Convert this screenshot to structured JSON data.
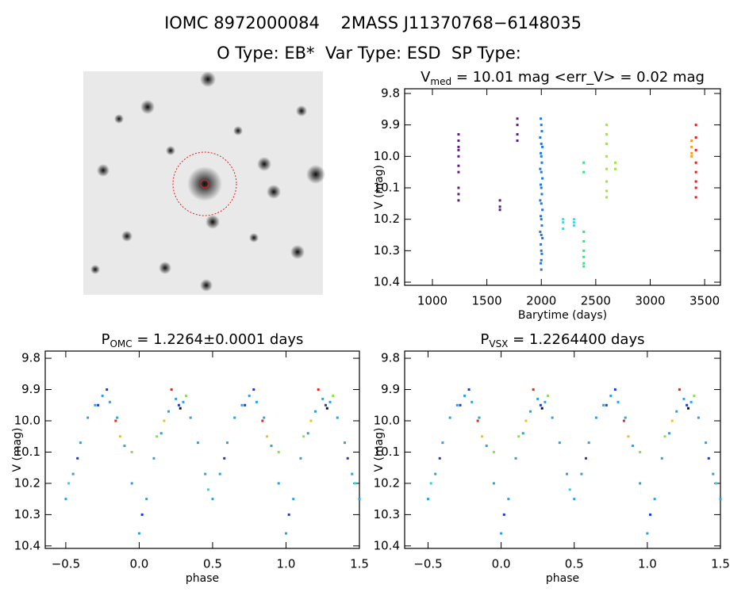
{
  "title": "IOMC 8972000084    2MASS J11370768−6148035",
  "subtitle": "O Type: EB*  Var Type: ESD  SP Type:",
  "chart_data": [
    {
      "type": "scatter",
      "title": {
        "main": "V",
        "sub": "med",
        "rest": " = 10.01 mag <err_V> = 0.02 mag"
      },
      "x_label": "Barytime (days)",
      "y_label": "V (mag)",
      "xlim": [
        745,
        3645
      ],
      "xticks": [
        1000,
        1500,
        2000,
        2500,
        3000,
        3500
      ],
      "ylim": [
        10.41,
        9.785
      ],
      "yticks": [
        9.8,
        9.9,
        {
          "value": 10,
          "label": "10.0"
        },
        10.1,
        10.2,
        10.3,
        10.4
      ],
      "series": [
        {
          "color": "#5b1e7e",
          "x": [
            1240,
            1240,
            1240,
            1240,
            1240,
            1240,
            1240,
            1240,
            1240,
            1240,
            1620,
            1620,
            1620,
            1780,
            1780,
            1780,
            1780
          ],
          "values": [
            9.93,
            9.95,
            9.97,
            9.98,
            10.0,
            10.03,
            10.05,
            10.1,
            10.12,
            10.14,
            10.14,
            10.16,
            10.17,
            9.88,
            9.9,
            9.93,
            9.95
          ]
        },
        {
          "color": "#1e78e6",
          "x": [
            1995,
            2000,
            2005,
            1990,
            2000,
            2010,
            1995,
            2000,
            2005,
            1990,
            2000,
            2010,
            1995,
            2000,
            2005,
            1990,
            2000,
            2010,
            1995,
            2000,
            2005,
            1990,
            2000,
            2010,
            1995,
            2000,
            2005,
            2000,
            1995,
            2000
          ],
          "values": [
            9.88,
            9.9,
            9.92,
            9.94,
            9.96,
            9.97,
            9.99,
            10.0,
            10.02,
            10.04,
            10.05,
            10.07,
            10.09,
            10.1,
            10.12,
            10.14,
            10.15,
            10.17,
            10.19,
            10.2,
            10.22,
            10.24,
            10.25,
            10.26,
            10.28,
            10.3,
            10.31,
            10.33,
            10.34,
            10.36
          ]
        },
        {
          "color": "#33dede",
          "x": [
            2200,
            2200,
            2200,
            2300,
            2300,
            2300
          ],
          "values": [
            10.2,
            10.21,
            10.23,
            10.2,
            10.21,
            10.22
          ]
        },
        {
          "color": "#3ce07a",
          "x": [
            2390,
            2390,
            2390,
            2390,
            2390,
            2390,
            2390,
            2390
          ],
          "values": [
            10.02,
            10.05,
            10.24,
            10.27,
            10.3,
            10.32,
            10.34,
            10.35
          ]
        },
        {
          "color": "#9ae63a",
          "x": [
            2600,
            2600,
            2600,
            2600,
            2600,
            2600,
            2600,
            2600,
            2680,
            2680
          ],
          "values": [
            9.9,
            9.93,
            9.96,
            10.0,
            10.04,
            10.08,
            10.11,
            10.13,
            10.02,
            10.04
          ]
        },
        {
          "color": "#f0a030",
          "x": [
            3380,
            3380,
            3380,
            3380
          ],
          "values": [
            9.95,
            9.97,
            9.99,
            10.0
          ]
        },
        {
          "color": "#e01e1e",
          "x": [
            3420,
            3420,
            3420,
            3420,
            3420,
            3420,
            3420,
            3420
          ],
          "values": [
            9.9,
            9.94,
            9.98,
            10.02,
            10.05,
            10.08,
            10.1,
            10.13
          ]
        }
      ]
    },
    {
      "type": "scatter",
      "title": {
        "main": "P",
        "sub": "OMC",
        "rest": " = 1.2264±0.0001 days"
      },
      "x_label": "phase",
      "y_label": "V (mag)",
      "xlim": [
        -0.64,
        1.5
      ],
      "xticks": [
        {
          "value": -0.5,
          "label": "−0.5"
        },
        {
          "value": 0,
          "label": "0.0"
        },
        0.5,
        {
          "value": 1,
          "label": "1.0"
        },
        1.5
      ],
      "ylim": [
        10.408,
        9.777
      ],
      "yticks": [
        9.8,
        9.9,
        {
          "value": 10,
          "label": "10.0"
        },
        10.1,
        10.2,
        10.3,
        10.4
      ],
      "series": [
        {
          "color": "#2ea0e0",
          "x": [
            -0.5,
            -0.45,
            -0.4,
            -0.35,
            -0.3,
            -0.25,
            -0.2,
            -0.15,
            -0.1,
            -0.05,
            0,
            0.05,
            0.1,
            0.15,
            0.2,
            0.25,
            0.3,
            0.35,
            0.4,
            0.45,
            0.5,
            0.55,
            0.6,
            0.65,
            0.7,
            0.75,
            0.8,
            0.85,
            0.9,
            0.95,
            1,
            1.05,
            1.1,
            1.15,
            1.2,
            1.25,
            1.3,
            1.35,
            1.4,
            1.45,
            1.5
          ],
          "values": [
            10.25,
            10.17,
            10.07,
            9.99,
            9.95,
            9.92,
            9.94,
            9.99,
            10.08,
            10.2,
            10.36,
            10.25,
            10.12,
            10.04,
            9.97,
            9.93,
            9.94,
            9.99,
            10.07,
            10.17,
            10.25,
            10.17,
            10.07,
            9.99,
            9.95,
            9.92,
            9.94,
            9.99,
            10.08,
            10.2,
            10.36,
            10.25,
            10.12,
            10.04,
            9.97,
            9.93,
            9.94,
            9.99,
            10.07,
            10.17,
            10.25
          ]
        },
        {
          "color": "#1a3cc8",
          "x": [
            -0.42,
            -0.28,
            -0.22,
            0.02,
            0.27,
            0.58,
            0.72,
            0.78,
            1.02,
            1.27,
            1.42
          ],
          "values": [
            10.12,
            9.95,
            9.9,
            10.3,
            9.95,
            10.12,
            9.95,
            9.9,
            10.3,
            9.95,
            10.12
          ]
        },
        {
          "color": "#e02a1a",
          "x": [
            -0.16,
            0.22,
            0.84,
            1.22
          ],
          "values": [
            10.0,
            9.9,
            10.0,
            9.9
          ]
        },
        {
          "color": "#f0c020",
          "x": [
            -0.13,
            0.17,
            0.87,
            1.17
          ],
          "values": [
            10.05,
            10.0,
            10.05,
            10.0
          ]
        },
        {
          "color": "#8ee040",
          "x": [
            -0.05,
            0.12,
            0.32,
            0.95,
            1.12,
            1.32
          ],
          "values": [
            10.1,
            10.05,
            9.92,
            10.1,
            10.05,
            9.92
          ]
        },
        {
          "color": "#30d8d0",
          "x": [
            -0.48,
            0.47,
            1.47
          ],
          "values": [
            10.2,
            10.22,
            10.2
          ]
        },
        {
          "color": "#111111",
          "x": [
            0.28,
            1.28
          ],
          "values": [
            9.96,
            9.96
          ]
        }
      ]
    },
    {
      "type": "scatter",
      "title": {
        "main": "P",
        "sub": "VSX",
        "rest": " = 1.2264400 days"
      },
      "x_label": "phase",
      "y_label": "V (mag)",
      "xlim": [
        -0.66,
        1.5
      ],
      "xticks": [
        {
          "value": -0.5,
          "label": "−0.5"
        },
        {
          "value": 0,
          "label": "0.0"
        },
        0.5,
        {
          "value": 1,
          "label": "1.0"
        },
        1.5
      ],
      "ylim": [
        10.408,
        9.777
      ],
      "yticks": [
        9.8,
        9.9,
        {
          "value": 10,
          "label": "10.0"
        },
        10.1,
        10.2,
        10.3,
        10.4
      ],
      "series": [
        {
          "color": "#2ea0e0",
          "x": [
            -0.5,
            -0.45,
            -0.4,
            -0.35,
            -0.3,
            -0.25,
            -0.2,
            -0.15,
            -0.1,
            -0.05,
            0,
            0.05,
            0.1,
            0.15,
            0.2,
            0.25,
            0.3,
            0.35,
            0.4,
            0.45,
            0.5,
            0.55,
            0.6,
            0.65,
            0.7,
            0.75,
            0.8,
            0.85,
            0.9,
            0.95,
            1,
            1.05,
            1.1,
            1.15,
            1.2,
            1.25,
            1.3,
            1.35,
            1.4,
            1.45,
            1.5
          ],
          "values": [
            10.25,
            10.17,
            10.07,
            9.99,
            9.95,
            9.92,
            9.94,
            9.99,
            10.08,
            10.2,
            10.36,
            10.25,
            10.12,
            10.04,
            9.97,
            9.93,
            9.94,
            9.99,
            10.07,
            10.17,
            10.25,
            10.17,
            10.07,
            9.99,
            9.95,
            9.92,
            9.94,
            9.99,
            10.08,
            10.2,
            10.36,
            10.25,
            10.12,
            10.04,
            9.97,
            9.93,
            9.94,
            9.99,
            10.07,
            10.17,
            10.25
          ]
        },
        {
          "color": "#1a3cc8",
          "x": [
            -0.42,
            -0.28,
            -0.22,
            0.02,
            0.27,
            0.58,
            0.72,
            0.78,
            1.02,
            1.27,
            1.42
          ],
          "values": [
            10.12,
            9.95,
            9.9,
            10.3,
            9.95,
            10.12,
            9.95,
            9.9,
            10.3,
            9.95,
            10.12
          ]
        },
        {
          "color": "#e02a1a",
          "x": [
            -0.16,
            0.22,
            0.84,
            1.22
          ],
          "values": [
            10.0,
            9.9,
            10.0,
            9.9
          ]
        },
        {
          "color": "#f0c020",
          "x": [
            -0.13,
            0.17,
            0.87,
            1.17
          ],
          "values": [
            10.05,
            10.0,
            10.05,
            10.0
          ]
        },
        {
          "color": "#8ee040",
          "x": [
            -0.05,
            0.12,
            0.32,
            0.95,
            1.12,
            1.32
          ],
          "values": [
            10.1,
            10.05,
            9.92,
            10.1,
            10.05,
            9.92
          ]
        },
        {
          "color": "#30d8d0",
          "x": [
            -0.48,
            0.47,
            1.47
          ],
          "values": [
            10.2,
            10.22,
            10.2
          ]
        },
        {
          "color": "#111111",
          "x": [
            0.28,
            1.28
          ],
          "values": [
            9.96,
            9.96
          ]
        }
      ]
    }
  ]
}
